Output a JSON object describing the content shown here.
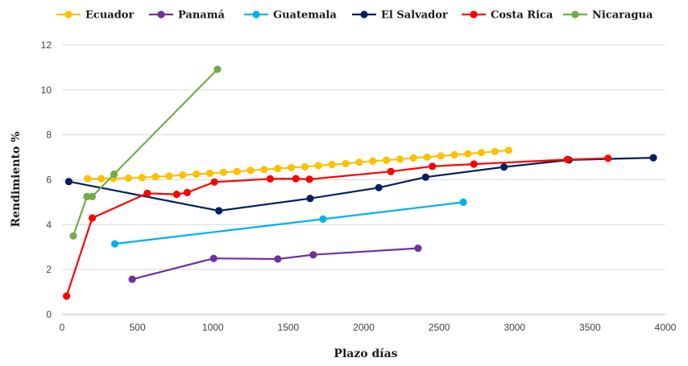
{
  "chart_data": {
    "type": "line",
    "title": "",
    "xlabel": "Plazo días",
    "ylabel": "Rendimiento %",
    "xlim": [
      0,
      4000
    ],
    "ylim": [
      0,
      12
    ],
    "x_ticks": [
      0,
      500,
      1000,
      1500,
      2000,
      2500,
      3000,
      3500,
      4000
    ],
    "y_ticks": [
      0,
      2,
      4,
      6,
      8,
      10,
      12
    ],
    "grid": "horizontal",
    "legend_position": "top",
    "series": [
      {
        "name": "Ecuador",
        "color": "#FFC000",
        "points": [
          [
            170,
            6.05
          ],
          [
            260,
            6.05
          ],
          [
            340,
            6.06
          ],
          [
            440,
            6.08
          ],
          [
            530,
            6.1
          ],
          [
            620,
            6.13
          ],
          [
            710,
            6.17
          ],
          [
            800,
            6.21
          ],
          [
            890,
            6.25
          ],
          [
            980,
            6.29
          ],
          [
            1070,
            6.33
          ],
          [
            1160,
            6.37
          ],
          [
            1250,
            6.42
          ],
          [
            1340,
            6.46
          ],
          [
            1430,
            6.5
          ],
          [
            1520,
            6.54
          ],
          [
            1610,
            6.58
          ],
          [
            1700,
            6.63
          ],
          [
            1790,
            6.68
          ],
          [
            1880,
            6.72
          ],
          [
            1970,
            6.78
          ],
          [
            2060,
            6.83
          ],
          [
            2150,
            6.87
          ],
          [
            2240,
            6.92
          ],
          [
            2330,
            6.97
          ],
          [
            2420,
            7.01
          ],
          [
            2510,
            7.06
          ],
          [
            2600,
            7.11
          ],
          [
            2690,
            7.16
          ],
          [
            2780,
            7.21
          ],
          [
            2870,
            7.26
          ],
          [
            2960,
            7.31
          ]
        ]
      },
      {
        "name": "Panamá",
        "color": "#7030A0",
        "points": [
          [
            465,
            1.57
          ],
          [
            1005,
            2.5
          ],
          [
            1430,
            2.47
          ],
          [
            1665,
            2.66
          ],
          [
            2360,
            2.95
          ]
        ]
      },
      {
        "name": "Guatemala",
        "color": "#00B0F0",
        "points": [
          [
            350,
            3.15
          ],
          [
            1730,
            4.25
          ],
          [
            2660,
            5.0
          ]
        ]
      },
      {
        "name": "El Salvador",
        "color": "#002060",
        "points": [
          [
            45,
            5.92
          ],
          [
            1040,
            4.62
          ],
          [
            1645,
            5.17
          ],
          [
            2100,
            5.65
          ],
          [
            2410,
            6.12
          ],
          [
            2930,
            6.57
          ],
          [
            3360,
            6.88
          ],
          [
            3920,
            6.98
          ]
        ]
      },
      {
        "name": "Costa Rica",
        "color": "#FF0000",
        "points": [
          [
            30,
            0.82
          ],
          [
            200,
            4.3
          ],
          [
            565,
            5.4
          ],
          [
            760,
            5.35
          ],
          [
            830,
            5.43
          ],
          [
            1010,
            5.9
          ],
          [
            1380,
            6.04
          ],
          [
            1550,
            6.05
          ],
          [
            1640,
            6.02
          ],
          [
            2180,
            6.37
          ],
          [
            2455,
            6.6
          ],
          [
            2730,
            6.7
          ],
          [
            3350,
            6.9
          ],
          [
            3620,
            6.96
          ]
        ]
      },
      {
        "name": "Nicaragua",
        "color": "#70AD47",
        "points": [
          [
            75,
            3.5
          ],
          [
            165,
            5.25
          ],
          [
            200,
            5.25
          ],
          [
            345,
            6.25
          ],
          [
            1030,
            10.92
          ]
        ]
      }
    ]
  }
}
